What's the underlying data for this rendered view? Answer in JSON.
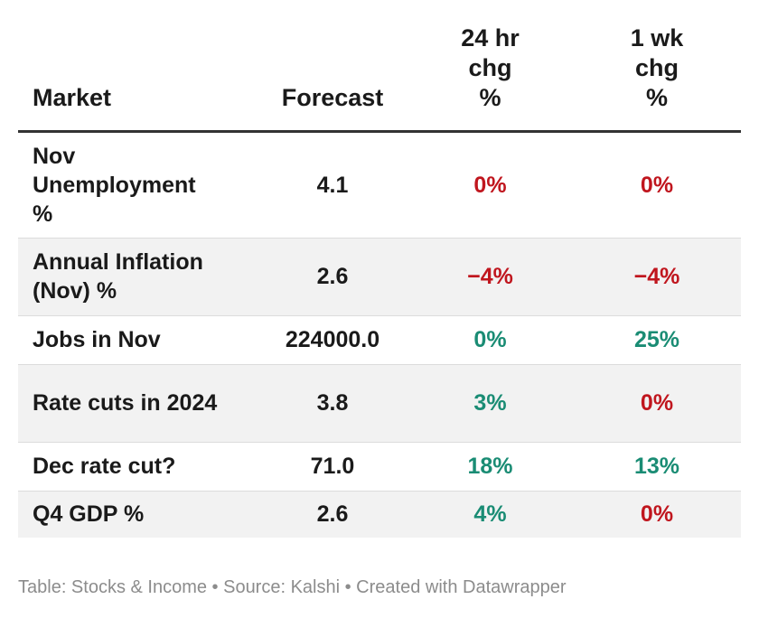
{
  "chart_data": {
    "type": "table",
    "columns": [
      "Market",
      "Forecast",
      "24 hr chg %",
      "1 wk chg %"
    ],
    "rows": [
      {
        "market": "Nov Unemployment %",
        "forecast": "4.1",
        "chg_24h": "0%",
        "chg_1wk": "0%",
        "chg_24h_dir": "neg",
        "chg_1wk_dir": "neg"
      },
      {
        "market": "Annual Inflation (Nov) %",
        "forecast": "2.6",
        "chg_24h": "−4%",
        "chg_1wk": "−4%",
        "chg_24h_dir": "neg",
        "chg_1wk_dir": "neg"
      },
      {
        "market": "Jobs in Nov",
        "forecast": "224000.0",
        "chg_24h": "0%",
        "chg_1wk": "25%",
        "chg_24h_dir": "pos",
        "chg_1wk_dir": "pos"
      },
      {
        "market": "Rate cuts in 2024",
        "forecast": "3.8",
        "chg_24h": "3%",
        "chg_1wk": "0%",
        "chg_24h_dir": "pos",
        "chg_1wk_dir": "neg"
      },
      {
        "market": "Dec rate cut?",
        "forecast": "71.0",
        "chg_24h": "18%",
        "chg_1wk": "13%",
        "chg_24h_dir": "pos",
        "chg_1wk_dir": "pos"
      },
      {
        "market": "Q4 GDP %",
        "forecast": "2.6",
        "chg_24h": "4%",
        "chg_1wk": "0%",
        "chg_24h_dir": "pos",
        "chg_1wk_dir": "neg"
      }
    ],
    "colors": {
      "positive": "#1a8c74",
      "negative": "#c0161e",
      "header_rule": "#333333",
      "alt_row": "#f2f2f2"
    }
  },
  "footer": "Table: Stocks & Income • Source: Kalshi • Created with Datawrapper"
}
